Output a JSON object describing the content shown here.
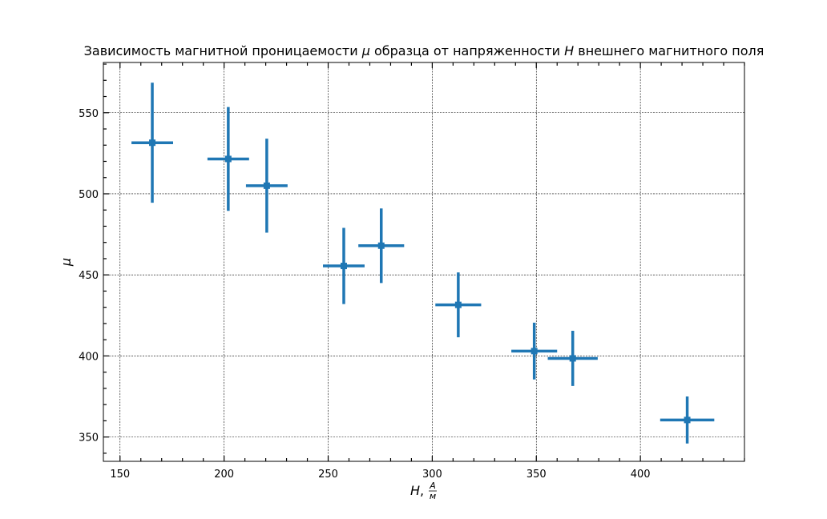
{
  "chart_data": {
    "type": "scatter",
    "title_parts": {
      "pre": "Зависимость магнитной проницаемости ",
      "mu": "μ",
      "mid": " образца от напряженности ",
      "h": "H",
      "post": " внешнего магнитного поля"
    },
    "xlabel": {
      "var": "H",
      "sep": ", ",
      "unit_num": "A",
      "unit_den": "м"
    },
    "ylabel": "μ",
    "xlim": [
      142,
      450
    ],
    "ylim": [
      335,
      581
    ],
    "xticks": [
      150,
      200,
      250,
      300,
      350,
      400
    ],
    "yticks": [
      350,
      400,
      450,
      500,
      550
    ],
    "xtick_labels": [
      "150",
      "200",
      "250",
      "300",
      "350",
      "400"
    ],
    "ytick_labels": [
      "350",
      "400",
      "450",
      "500",
      "550"
    ],
    "x_minor_step": 10,
    "y_minor_step": 10,
    "grid": true,
    "color": "#1f77b4",
    "points": [
      {
        "x": 165.5,
        "y": 531.5,
        "xerr": 10,
        "yerr": 37
      },
      {
        "x": 202,
        "y": 521.5,
        "xerr": 10,
        "yerr": 32
      },
      {
        "x": 220.5,
        "y": 505,
        "xerr": 10,
        "yerr": 29
      },
      {
        "x": 257.5,
        "y": 455.5,
        "xerr": 10,
        "yerr": 23.5
      },
      {
        "x": 275.5,
        "y": 468,
        "xerr": 11,
        "yerr": 23
      },
      {
        "x": 312.5,
        "y": 431.5,
        "xerr": 11,
        "yerr": 20
      },
      {
        "x": 349,
        "y": 403,
        "xerr": 11,
        "yerr": 17.5
      },
      {
        "x": 367.5,
        "y": 398.5,
        "xerr": 12,
        "yerr": 17
      },
      {
        "x": 422.5,
        "y": 360.5,
        "xerr": 13,
        "yerr": 14.5
      }
    ]
  }
}
